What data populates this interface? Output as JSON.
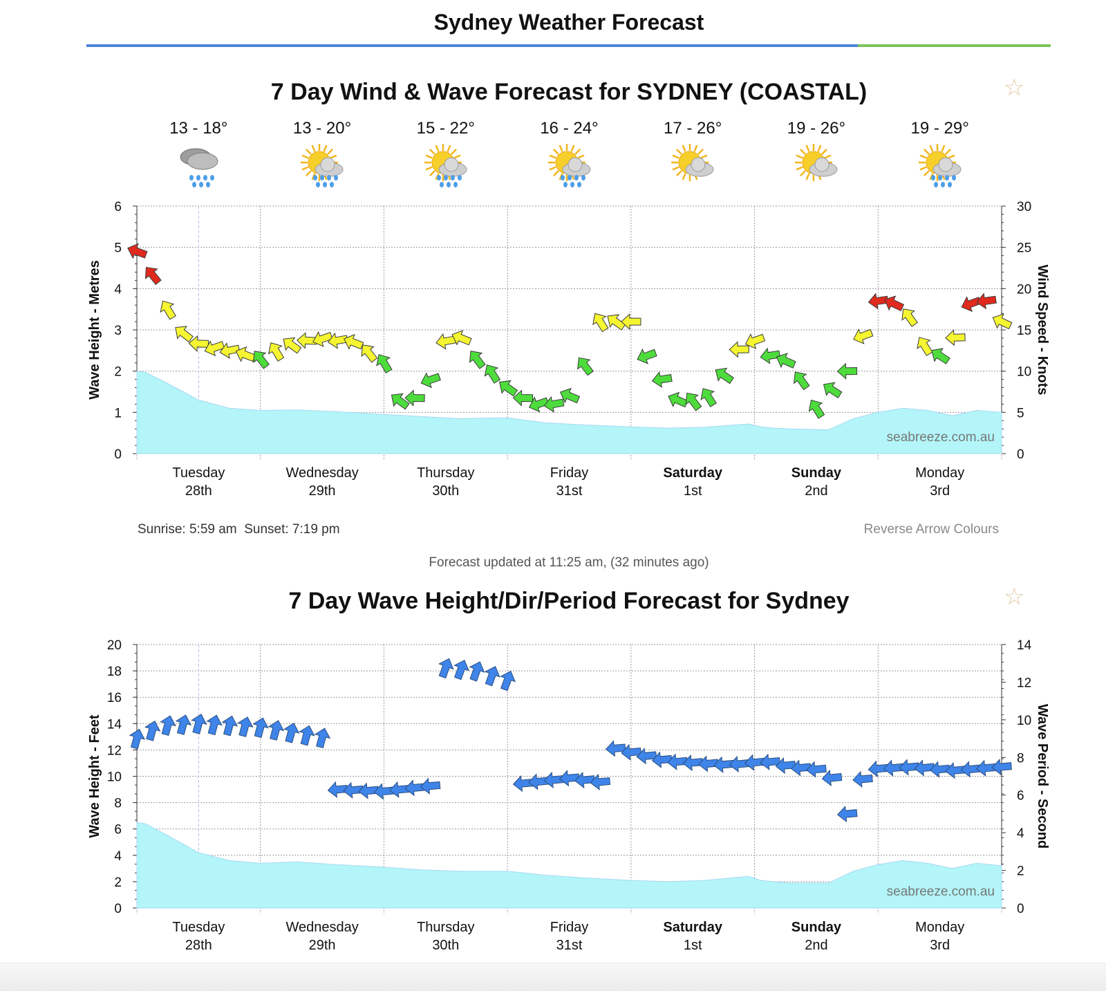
{
  "page": {
    "title": "Sydney Weather Forecast",
    "sunrise": "Sunrise: 5:59 am",
    "sunset": "Sunset: 7:19 pm",
    "reverse_label": "Reverse Arrow Colours",
    "updated": "Forecast updated at 11:25 am, (32 minutes ago)",
    "watermark": "seabreeze.com.au",
    "colors": {
      "title_rule_blue": "#4a86d8",
      "title_rule_green": "#7cc45a",
      "wave_fill": "#b3f5f8",
      "arrow_red": "#e02a1e",
      "arrow_yellow": "#f5f532",
      "arrow_green": "#4ddc3c",
      "arrow_blue": "#3f84e8"
    }
  },
  "days": [
    {
      "name": "Tuesday",
      "date": "28th",
      "bold": false,
      "temp": "13 - 18°",
      "icon": "rain-cloud-icon"
    },
    {
      "name": "Wednesday",
      "date": "29th",
      "bold": false,
      "temp": "13 - 20°",
      "icon": "sun-shower-icon"
    },
    {
      "name": "Thursday",
      "date": "30th",
      "bold": false,
      "temp": "15 - 22°",
      "icon": "sun-shower-icon"
    },
    {
      "name": "Friday",
      "date": "31st",
      "bold": false,
      "temp": "16 - 24°",
      "icon": "sun-shower-icon"
    },
    {
      "name": "Saturday",
      "date": "1st",
      "bold": true,
      "temp": "17 - 26°",
      "icon": "sun-cloud-icon"
    },
    {
      "name": "Sunday",
      "date": "2nd",
      "bold": true,
      "temp": "19 - 26°",
      "icon": "sun-cloud-icon"
    },
    {
      "name": "Monday",
      "date": "3rd",
      "bold": false,
      "temp": "19 - 29°",
      "icon": "sun-shower-icon"
    }
  ],
  "chart_data": [
    {
      "id": "wind",
      "type": "line",
      "title": "7 Day Wind & Wave Forecast for SYDNEY (COASTAL)",
      "ylabel": "Wave Height - Metres",
      "y2label": "Wind Speed - Knots",
      "ylim": [
        0,
        6
      ],
      "y2lim": [
        0,
        30
      ],
      "yticks": [
        "0",
        "1",
        "2",
        "3",
        "4",
        "5",
        "6"
      ],
      "y2ticks": [
        "0",
        "5",
        "10",
        "15",
        "20",
        "25",
        "30"
      ],
      "x_days": 7,
      "grid": true,
      "wave_height_series": {
        "name": "Wave Height (m)",
        "x": [
          0,
          0.07,
          0.25,
          0.5,
          0.75,
          1,
          1.3,
          1.6,
          2,
          2.3,
          2.6,
          3,
          3.3,
          3.6,
          4,
          4.3,
          4.6,
          4.95,
          5.05,
          5.15,
          5.3,
          5.6,
          5.8,
          6.0,
          6.2,
          6.4,
          6.6,
          6.8,
          7.0
        ],
        "values": [
          2.0,
          1.97,
          1.7,
          1.3,
          1.1,
          1.05,
          1.06,
          1.02,
          0.95,
          0.9,
          0.85,
          0.87,
          0.75,
          0.7,
          0.65,
          0.62,
          0.64,
          0.72,
          0.65,
          0.62,
          0.6,
          0.58,
          0.85,
          1.0,
          1.1,
          1.05,
          0.92,
          1.05,
          1.0
        ]
      },
      "wind_series": {
        "name": "Wind Speed (knots)",
        "x": [
          0,
          0.1,
          0.25,
          0.4,
          0.55,
          0.75,
          1.0,
          1.2,
          1.45,
          1.75,
          2.0,
          2.15,
          2.35,
          2.55,
          2.75,
          3.0,
          3.2,
          3.4,
          3.55,
          3.75,
          4.0,
          4.15,
          4.4,
          4.65,
          4.95,
          5.1,
          5.3,
          5.5,
          5.75,
          6.0,
          6.2,
          6.45,
          6.65,
          6.8,
          7.0
        ],
        "values": [
          24.5,
          22.5,
          17.5,
          14.0,
          13.0,
          12.5,
          11.5,
          13.0,
          14.0,
          13.5,
          11.0,
          5.5,
          8.0,
          15.5,
          11.5,
          8.0,
          6.0,
          6.0,
          7.5,
          16.0,
          16.0,
          11.0,
          6.0,
          7.0,
          14.5,
          12.0,
          11.0,
          5.5,
          10.0,
          18.5,
          18.0,
          11.0,
          14.5,
          20.0,
          16.0
        ]
      }
    },
    {
      "id": "waves",
      "type": "line",
      "title": "7 Day Wave Height/Dir/Period Forecast for Sydney",
      "ylabel": "Wave Height - Feet",
      "y2label": "Wave Period - Second",
      "ylim": [
        0,
        20
      ],
      "y2lim": [
        0,
        14
      ],
      "yticks": [
        "0",
        "2",
        "4",
        "6",
        "8",
        "10",
        "12",
        "14",
        "16",
        "18",
        "20"
      ],
      "y2ticks": [
        "0",
        "2",
        "4",
        "6",
        "8",
        "10",
        "12",
        "14"
      ],
      "x_days": 7,
      "grid": true,
      "wave_height_series": {
        "name": "Wave Height (ft)",
        "x": [
          0,
          0.07,
          0.25,
          0.5,
          0.75,
          1,
          1.3,
          1.6,
          2,
          2.3,
          2.6,
          3,
          3.3,
          3.6,
          4,
          4.3,
          4.6,
          4.95,
          5.05,
          5.15,
          5.3,
          5.6,
          5.8,
          6.0,
          6.2,
          6.4,
          6.6,
          6.8,
          7.0
        ],
        "values": [
          6.5,
          6.4,
          5.5,
          4.2,
          3.6,
          3.4,
          3.5,
          3.3,
          3.1,
          2.9,
          2.8,
          2.8,
          2.5,
          2.3,
          2.1,
          2.0,
          2.1,
          2.4,
          2.1,
          2.0,
          1.9,
          1.9,
          2.8,
          3.3,
          3.6,
          3.4,
          3.0,
          3.4,
          3.2
        ]
      },
      "wave_period_series": {
        "name": "Wave Period (s)",
        "x": [
          0,
          0.2,
          0.5,
          1.0,
          1.55,
          1.6,
          2.0,
          2.4,
          2.45,
          2.75,
          3.05,
          3.1,
          3.5,
          3.75,
          3.8,
          4.3,
          4.8,
          5.1,
          5.3,
          5.6,
          5.75,
          5.82,
          6.0,
          6.3,
          6.6,
          7.0
        ],
        "values": [
          9.0,
          9.7,
          9.8,
          9.6,
          9.0,
          6.3,
          6.2,
          6.5,
          12.8,
          12.6,
          12.0,
          6.6,
          6.9,
          6.7,
          8.6,
          7.8,
          7.6,
          7.8,
          7.5,
          7.3,
          5.0,
          6.6,
          7.4,
          7.5,
          7.3,
          7.5
        ]
      }
    }
  ]
}
